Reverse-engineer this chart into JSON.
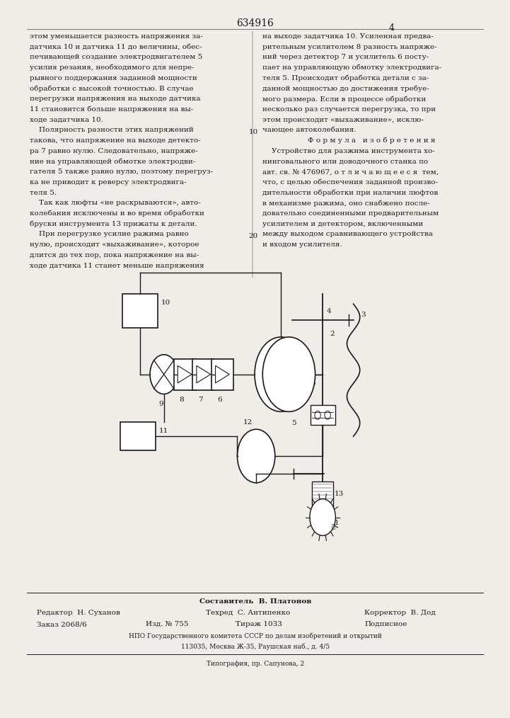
{
  "patent_number": "634916",
  "page_number": "4",
  "bg": "#f0ede8",
  "tc": "#1a1a1a",
  "left_col_lines": [
    "этом уменьшается разность напряжения за-",
    "датчика 10 и датчика 11 до величины, обес-",
    "печивающей создание электродвигателем 5",
    "усилия резания, необходимого для непре-",
    "рывного поддержания заданной мощности",
    "обработки с высокой точностью. В случае",
    "перегрузки напряжения на выходе датчика",
    "11 становится больше напряжения на вы-",
    "ходе задатчика 10.",
    "    Полярность разности этих напряжений",
    "такова, что напряжение на выходе детекто-",
    "ра 7 равно нулю. Следовательно, напряже-",
    "ние на управляющей обмотке электродви-",
    "гателя 5 также равно нулю, поэтому перегруз-",
    "ка не приводит к реверсу электродвига-",
    "теля 5.",
    "    Так как люфты «не раскрываются», авто-",
    "колебания исключены и во время обработки",
    "бруски инструмента 13 прижаты к детали.",
    "    При перегрузке усилие ражима равно",
    "нулю, происходит «выхаживание», которое",
    "длится до тех пор, пока напряжение на вы-",
    "ходе датчика 11 станет меньше напряжения"
  ],
  "right_col_lines": [
    "на выходе задатчика 10. Усиленная предва-",
    "рительным усилителем 8 разность напряже-",
    "ний через детектор 7 и усилитель 6 посту-",
    "пает на управляющую обмотку электродвига-",
    "теля 5. Происходит обработка детали с за-",
    "данной мощностью до достижения требуе-",
    "мого размера. Если в процессе обработки",
    "несколько раз случается перегрузка, то при",
    "этом происходит «выхаживание», исклю-",
    "чающее автоколебания.",
    "Ф о р м у л а   и з о б р е т е н и я",
    "    Устройство для разжима инструмента хо-",
    "нинговального или доводочного станка по",
    "авт. св. № 476967, о т л и ч а ю щ е е с я  тем,",
    "что, с целью обеспечения заданной произво-",
    "дительности обработки при наличии люфтов",
    "в механизме ражима, оно снабжено после-",
    "довательно соединенными предварительным",
    "усилителем и детектором, включенными",
    "между выходом сравнивающего устройства",
    "и входом усилителя."
  ],
  "line_num_10_idx": 9,
  "line_num_20_idx": 19,
  "formula_idx": 10,
  "footer": {
    "sestavitel": "Составитель  В. Платонов",
    "redaktor": "Редактор  Н. Суханов",
    "tehred": "Техред  С. Антипенко",
    "korrektor": "Корректор  В. Дод",
    "zakaz": "Заказ 2068/6",
    "izd": "Изд. № 755",
    "tirazh": "Тираж 1033",
    "podpisnoe": "Подписное",
    "npo": "НПО Государственного комитета СССР по делам изобретений и открытий",
    "addr": "113035, Москва Ж-35, Раушская наб., д. 4/5",
    "tipografia": "Типография, пр. Сапунова, 2"
  }
}
